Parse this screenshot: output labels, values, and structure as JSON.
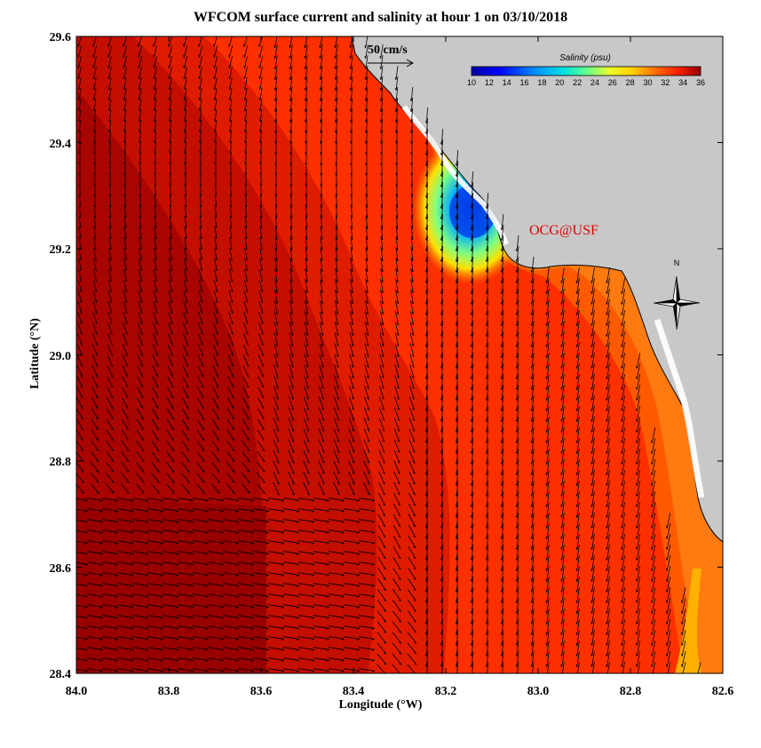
{
  "title": "WFCOM surface current and salinity at hour 1 on 03/10/2018",
  "xlabel": "Longitude (°W)",
  "ylabel": "Latitude (°N)",
  "x_ticks": [
    "84.0",
    "83.8",
    "83.6",
    "83.4",
    "83.2",
    "83.0",
    "82.8",
    "82.6"
  ],
  "y_ticks": [
    "29.6",
    "29.4",
    "29.2",
    "29.0",
    "28.8",
    "28.6",
    "28.4"
  ],
  "scale_label": "50 cm/s",
  "colorbar": {
    "title": "Salinity (psu)",
    "ticks": [
      "10",
      "12",
      "14",
      "16",
      "18",
      "20",
      "22",
      "24",
      "26",
      "28",
      "30",
      "32",
      "34",
      "36"
    ]
  },
  "credit": "OCG@USF",
  "north_label": "N",
  "colors": {
    "land": "#c8c8c8",
    "salinity_high": "#a00000",
    "salinity_mid": "#ff3300",
    "salinity_low": "#0000c8",
    "credit": "#dd0000"
  },
  "map_data": {
    "lon_range": [
      84.0,
      82.6
    ],
    "lat_range": [
      28.4,
      29.6
    ],
    "salinity_range": [
      10,
      36
    ]
  }
}
